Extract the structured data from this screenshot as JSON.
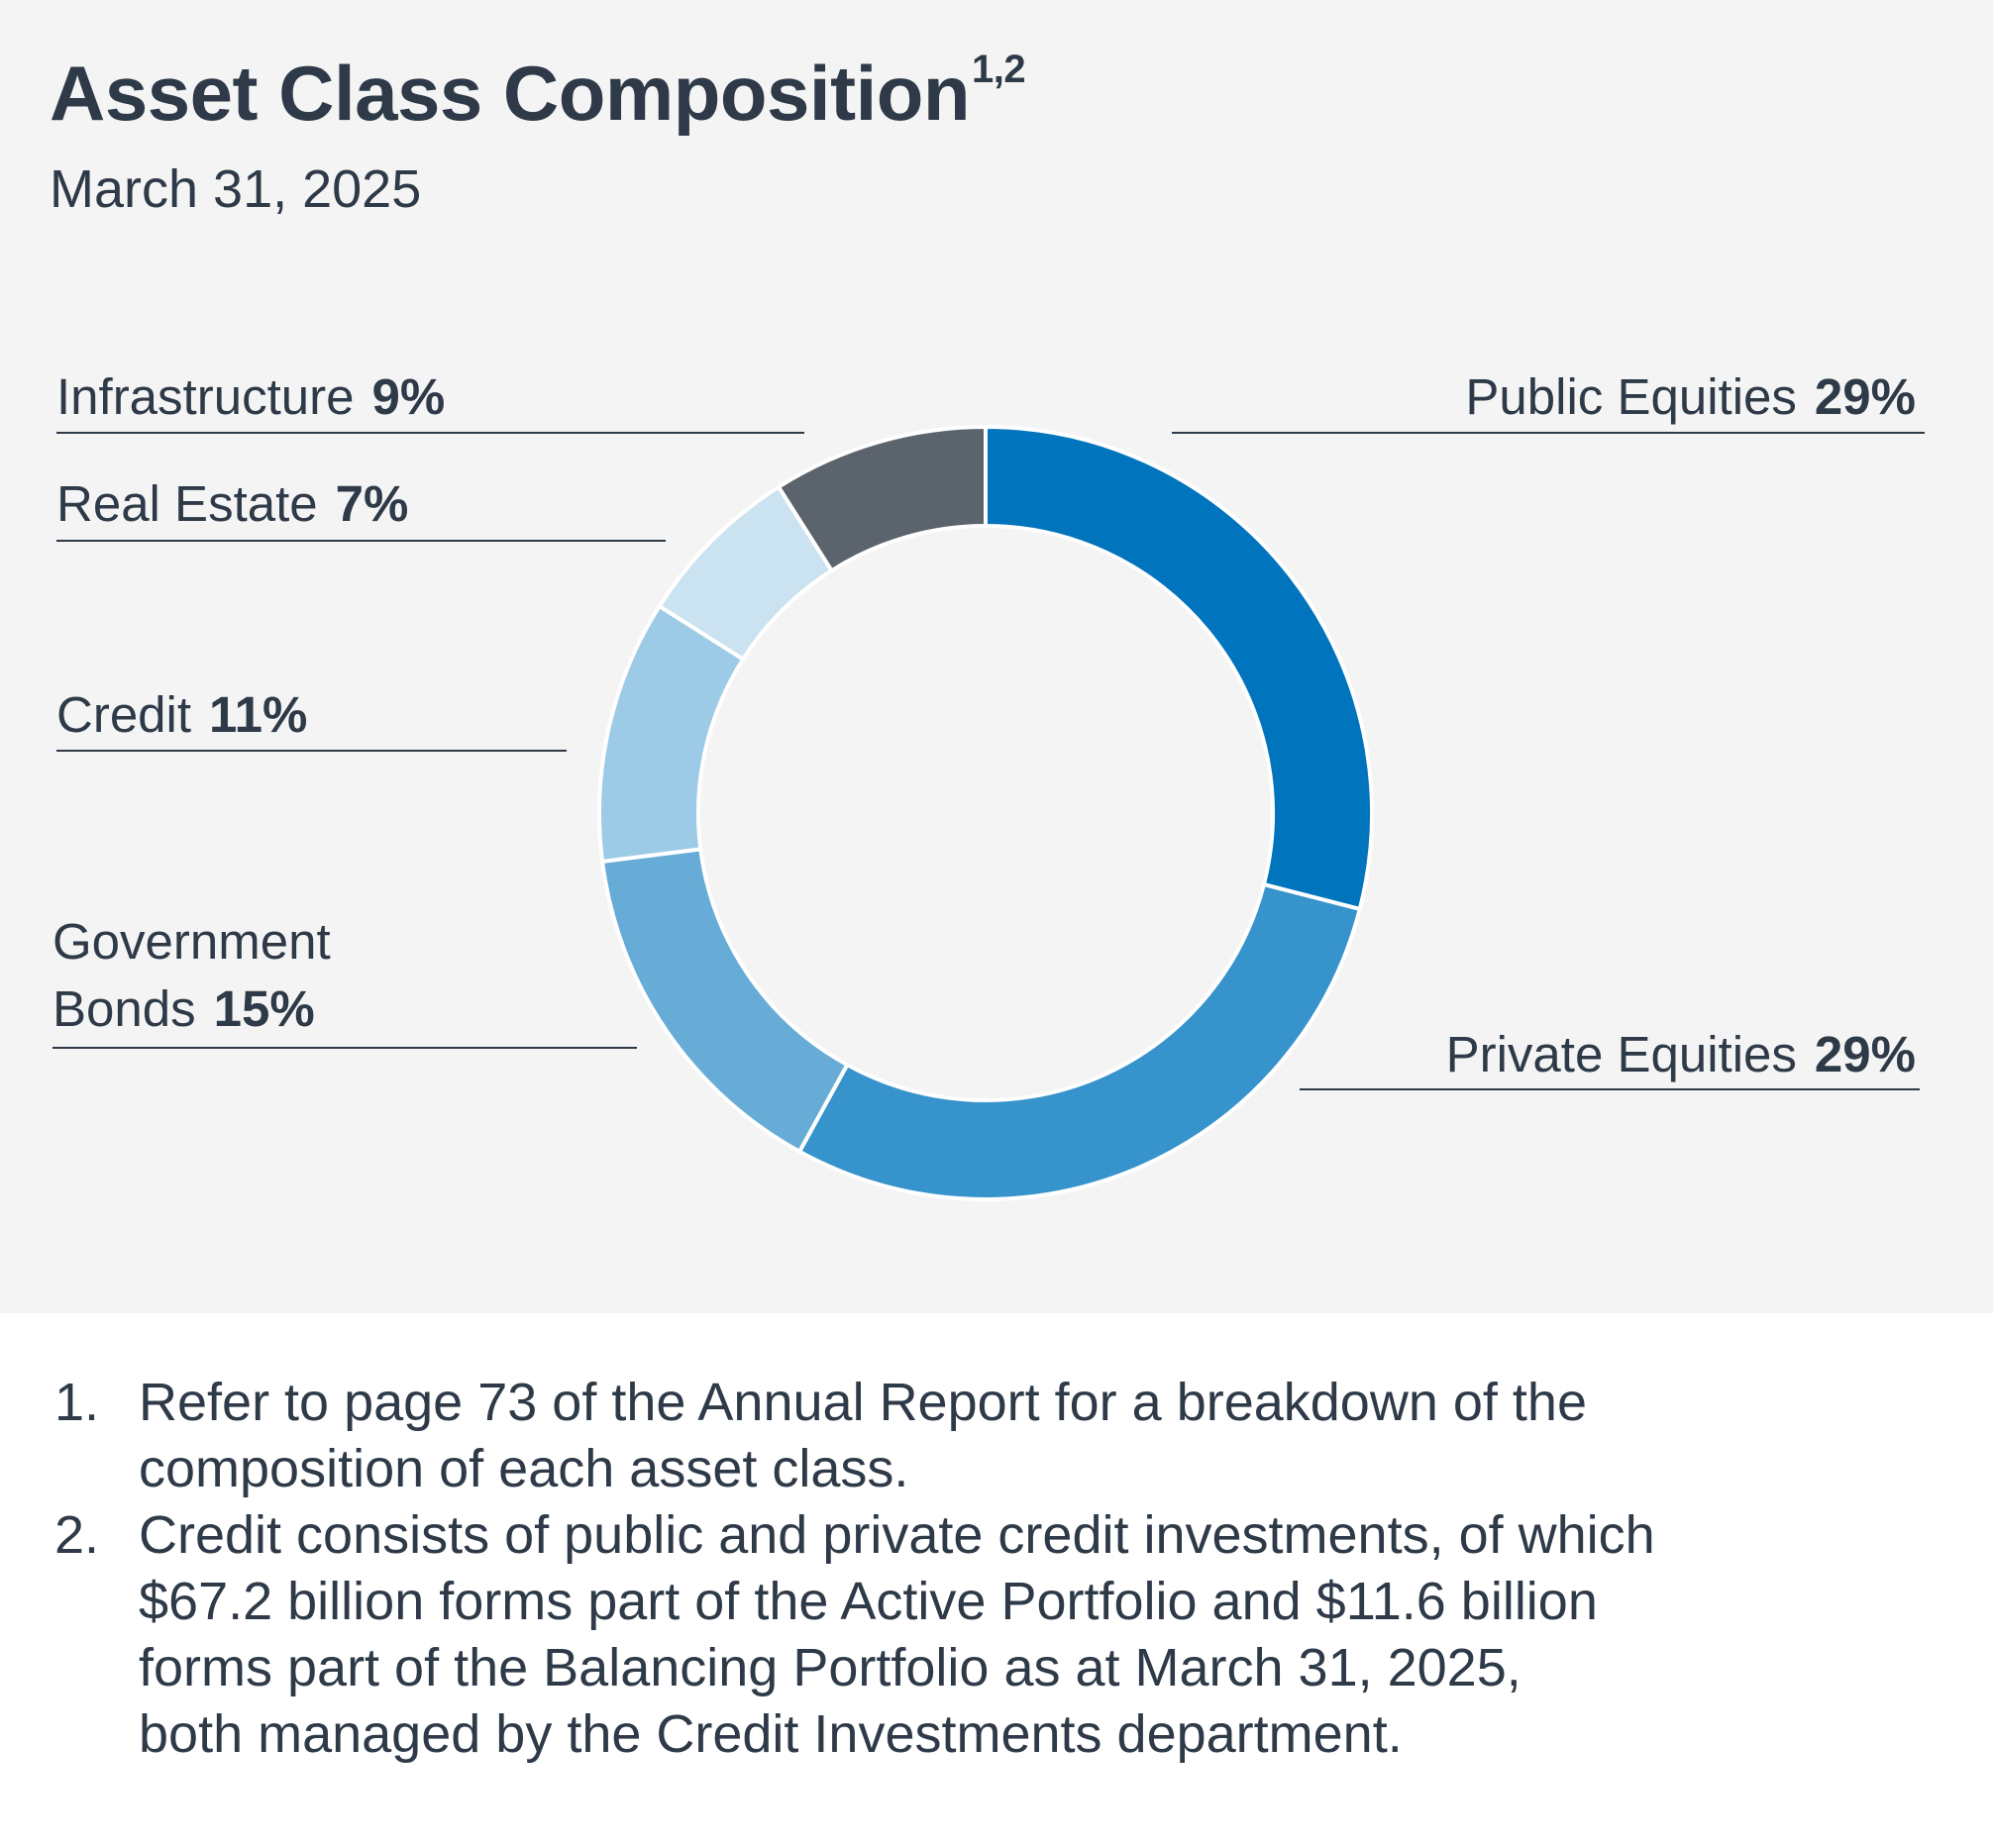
{
  "title": "Asset Class Composition",
  "title_superscript": "1,2",
  "subtitle": "March 31, 2025",
  "chart_data": {
    "type": "pie",
    "style": "donut",
    "title": "Asset Class Composition",
    "date": "March 31, 2025",
    "series": [
      {
        "name": "Public Equities",
        "value": 29,
        "label": "29%",
        "color": "#0074bd"
      },
      {
        "name": "Private Equities",
        "value": 29,
        "label": "29%",
        "color": "#3693cb"
      },
      {
        "name": "Government Bonds",
        "value": 15,
        "label": "15%",
        "color": "#67acd7"
      },
      {
        "name": "Credit",
        "value": 11,
        "label": "11%",
        "color": "#9dcae6"
      },
      {
        "name": "Real Estate",
        "value": 7,
        "label": "7%",
        "color": "#cbe2f1"
      },
      {
        "name": "Infrastructure",
        "value": 9,
        "label": "9%",
        "color": "#5b646d"
      }
    ]
  },
  "labels": {
    "public_equities": {
      "name": "Public Equities",
      "value": "29%"
    },
    "private_equities": {
      "name": "Private Equities",
      "value": "29%"
    },
    "government_bonds": {
      "name_line1": "Government",
      "name_line2": "Bonds",
      "value": "15%"
    },
    "credit": {
      "name": "Credit",
      "value": "11%"
    },
    "real_estate": {
      "name": "Real Estate",
      "value": "7%"
    },
    "infrastructure": {
      "name": "Infrastructure",
      "value": "9%"
    }
  },
  "footnotes": [
    {
      "number": "1.",
      "line1": "Refer to page 73 of the Annual Report for a breakdown of the",
      "line2": "composition of each asset class."
    },
    {
      "number": "2.",
      "line1": "Credit consists of public and private credit investments, of which",
      "line2": "$67.2 billion forms part of the Active Portfolio and $11.6 billion",
      "line3": "forms part of the Balancing Portfolio as at March 31, 2025,",
      "line4": "both managed by the Credit Investments department."
    }
  ]
}
